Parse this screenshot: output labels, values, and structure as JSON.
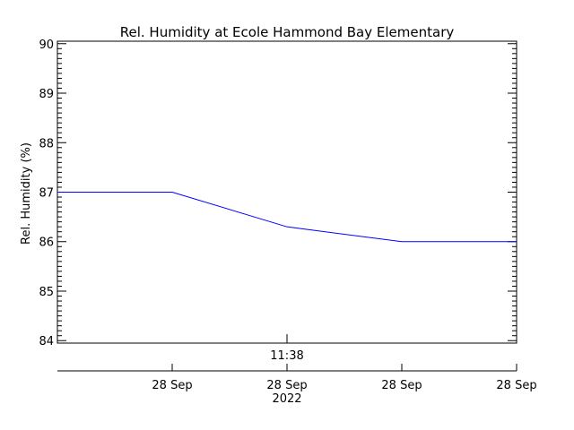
{
  "chart_data": {
    "type": "line",
    "title": "Rel. Humidity at Ecole Hammond Bay Elementary",
    "ylabel": "Rel. Humidity (%)",
    "xlabel": "",
    "ylim": [
      83.95,
      90.05
    ],
    "yticks": [
      84,
      85,
      86,
      87,
      88,
      89,
      90
    ],
    "x_range": [
      0,
      4
    ],
    "x_upper_ticks": [
      {
        "x": 2,
        "label": "11:38"
      }
    ],
    "x_lower_ticks": [
      {
        "x": 1,
        "label": "28 Sep",
        "sublabel": ""
      },
      {
        "x": 2,
        "label": "28 Sep",
        "sublabel": "2022"
      },
      {
        "x": 3,
        "label": "28 Sep",
        "sublabel": ""
      },
      {
        "x": 4,
        "label": "28 Sep",
        "sublabel": ""
      }
    ],
    "series": [
      {
        "x": [
          0,
          1,
          2,
          3,
          4
        ],
        "values": [
          87.0,
          87.0,
          86.3,
          86.0,
          86.0
        ],
        "color": "#0000ff"
      }
    ],
    "grid": false
  }
}
